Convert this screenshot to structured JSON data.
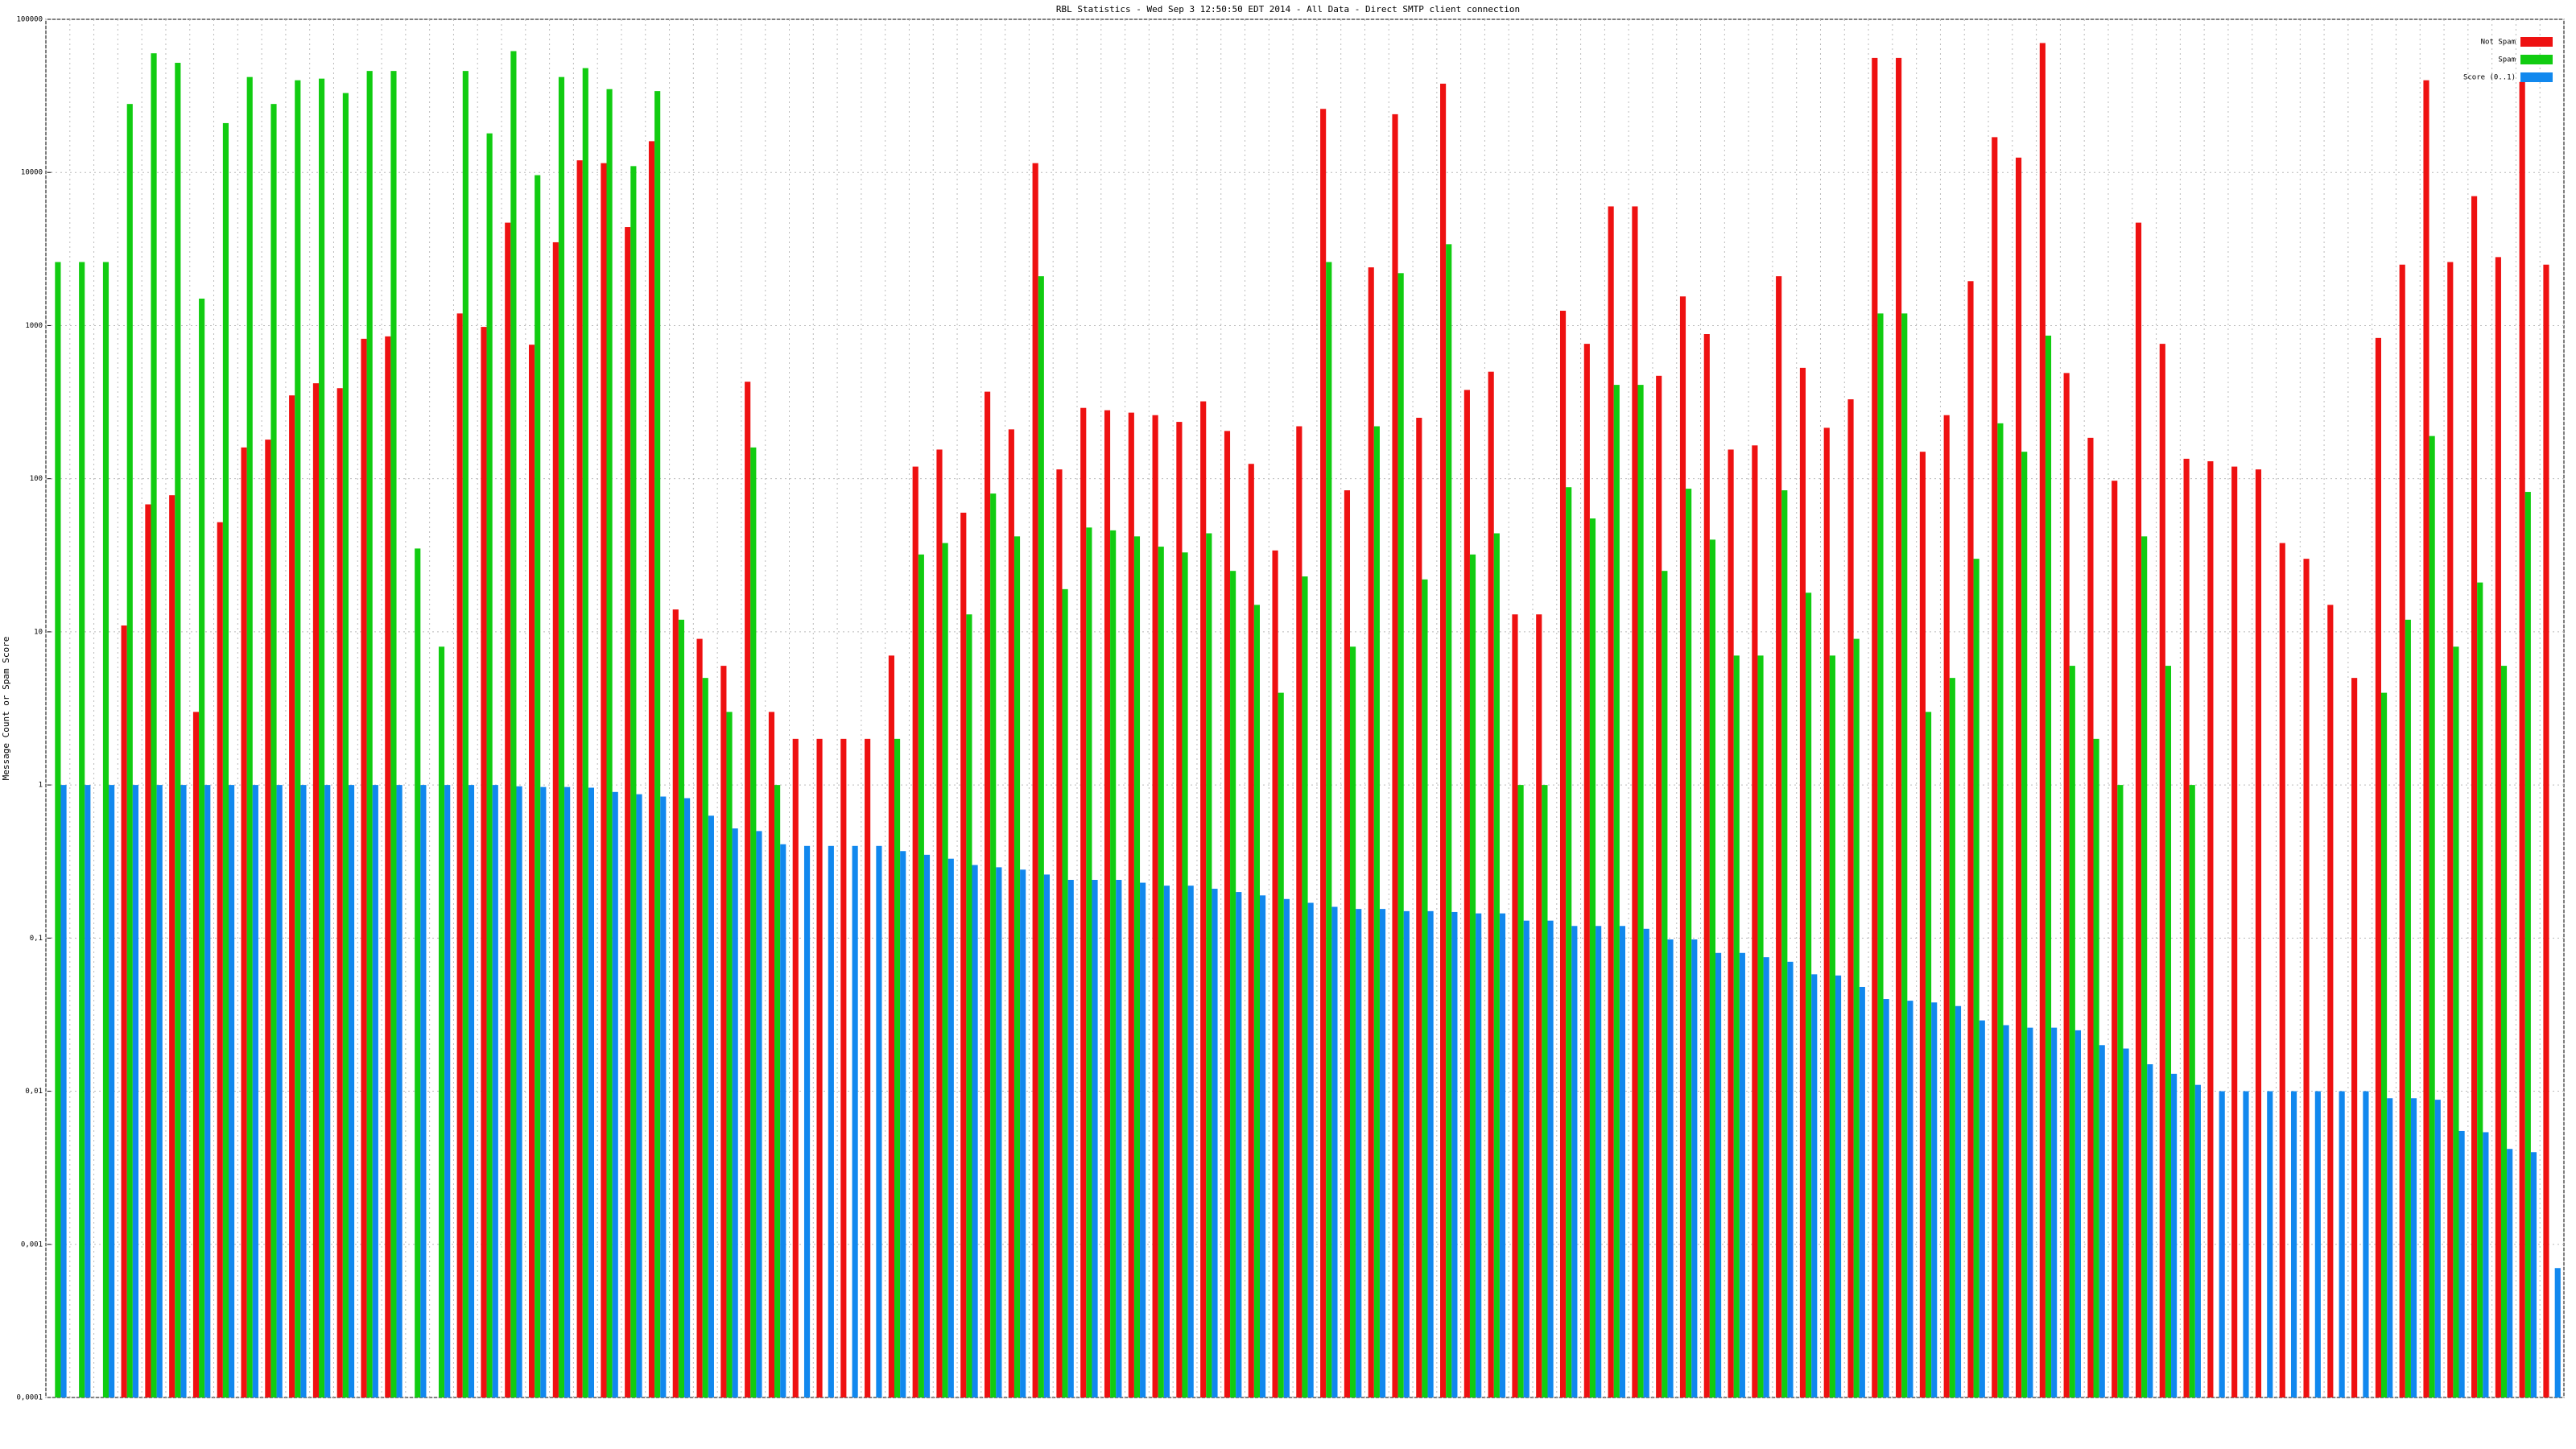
{
  "chart_data": {
    "type": "bar",
    "title": "RBL Statistics - Wed Sep  3 12:50:50 EDT 2014 - All Data - Direct SMTP client connection",
    "y_label": "Message Count or Spam Score",
    "log_scale": true,
    "grid": true,
    "legend": "upper right",
    "ylim": [
      0.0001,
      100000
    ],
    "yticks": [
      {
        "value": 0.0001,
        "label": "0,0001"
      },
      {
        "value": 0.001,
        "label": "0,001"
      },
      {
        "value": 0.01,
        "label": "0,01"
      },
      {
        "value": 0.1,
        "label": "0,1"
      },
      1,
      10,
      100,
      1000,
      10000,
      100000
    ],
    "categories": [
      null,
      null,
      null,
      null,
      null,
      null,
      null,
      null,
      null,
      null,
      null,
      null,
      null,
      null,
      null,
      null,
      null,
      null,
      null,
      null,
      null,
      null,
      null,
      null,
      null,
      null,
      null,
      null,
      null,
      null,
      null,
      null,
      null,
      null,
      null,
      null,
      null,
      null,
      null,
      null,
      null,
      null,
      null,
      null,
      null,
      null,
      null,
      null,
      null,
      null,
      null,
      null,
      null,
      null,
      null,
      null,
      null,
      null,
      null,
      null,
      null,
      null,
      null,
      null,
      null,
      null,
      null,
      null,
      null,
      null,
      null,
      null,
      null,
      null,
      null,
      null,
      null,
      null,
      null,
      null,
      null,
      null,
      null,
      null,
      null,
      null,
      null,
      null,
      null,
      null,
      null,
      null,
      null,
      null,
      null,
      null,
      null,
      null,
      null,
      null,
      null,
      null,
      null,
      null,
      null
    ],
    "series": [
      {
        "name": "Not Spam",
        "color": "#ee1111",
        "values": [
          null,
          null,
          null,
          11,
          68,
          78,
          3,
          52,
          160,
          180,
          350,
          420,
          390,
          820,
          850,
          null,
          null,
          1200,
          980,
          4700,
          750,
          3500,
          12000,
          11500,
          4400,
          16000,
          14,
          9,
          6,
          430,
          3,
          2,
          2,
          2,
          2,
          7,
          120,
          155,
          60,
          370,
          210,
          11500,
          115,
          290,
          280,
          270,
          260,
          235,
          320,
          205,
          125,
          34,
          220,
          26000,
          84,
          2400,
          24000,
          250,
          38000,
          380,
          500,
          13,
          13,
          1250,
          760,
          6000,
          6000,
          470,
          1550,
          880,
          155,
          165,
          2100,
          530,
          215,
          330,
          56000,
          56000,
          150,
          260,
          1950,
          17000,
          12500,
          70000,
          490,
          185,
          97,
          4700,
          760,
          135,
          130,
          120,
          115,
          38,
          30,
          15,
          5,
          830,
          2500,
          40000,
          2600,
          7000,
          2800,
          39000,
          2500
        ]
      },
      {
        "name": "Spam",
        "color": "#11cc11",
        "values": [
          2600,
          2600,
          2600,
          28000,
          60000,
          52000,
          1500,
          21000,
          42000,
          28000,
          40000,
          41000,
          33000,
          46000,
          46000,
          35,
          8,
          46000,
          18000,
          62000,
          9600,
          42000,
          48000,
          35000,
          11000,
          34000,
          12,
          5,
          3,
          160,
          1,
          null,
          null,
          null,
          null,
          2,
          32,
          38,
          13,
          80,
          42,
          2100,
          19,
          48,
          46,
          42,
          36,
          33,
          44,
          25,
          15,
          4,
          23,
          2600,
          8,
          220,
          2200,
          22,
          3400,
          32,
          44,
          1,
          1,
          88,
          55,
          410,
          410,
          25,
          86,
          40,
          7,
          7,
          84,
          18,
          7,
          9,
          1200,
          1200,
          3,
          5,
          30,
          230,
          150,
          860,
          6,
          2,
          1,
          42,
          6,
          1,
          null,
          null,
          null,
          null,
          null,
          null,
          null,
          4,
          12,
          190,
          8,
          21,
          6,
          82,
          null
        ]
      },
      {
        "name": "Score (0..1)",
        "color": "#1188ee",
        "values": [
          1,
          1,
          1,
          1,
          1,
          1,
          1,
          1,
          1,
          1,
          1,
          1,
          1,
          1,
          1,
          1,
          1,
          1,
          1,
          0.98,
          0.97,
          0.97,
          0.96,
          0.9,
          0.87,
          0.84,
          0.82,
          0.63,
          0.52,
          0.5,
          0.41,
          0.4,
          0.4,
          0.4,
          0.4,
          0.37,
          0.35,
          0.33,
          0.3,
          0.29,
          0.28,
          0.26,
          0.24,
          0.24,
          0.24,
          0.23,
          0.22,
          0.22,
          0.21,
          0.2,
          0.19,
          0.18,
          0.17,
          0.16,
          0.155,
          0.155,
          0.15,
          0.15,
          0.148,
          0.145,
          0.145,
          0.13,
          0.13,
          0.12,
          0.12,
          0.12,
          0.115,
          0.098,
          0.098,
          0.08,
          0.08,
          0.075,
          0.07,
          0.058,
          0.057,
          0.048,
          0.04,
          0.039,
          0.038,
          0.036,
          0.029,
          0.027,
          0.026,
          0.026,
          0.025,
          0.02,
          0.019,
          0.015,
          0.013,
          0.011,
          0.01,
          0.01,
          0.01,
          0.01,
          0.01,
          0.01,
          0.01,
          0.009,
          0.009,
          0.0088,
          0.0055,
          0.0054,
          0.0042,
          0.004,
          0.0007
        ]
      }
    ]
  }
}
